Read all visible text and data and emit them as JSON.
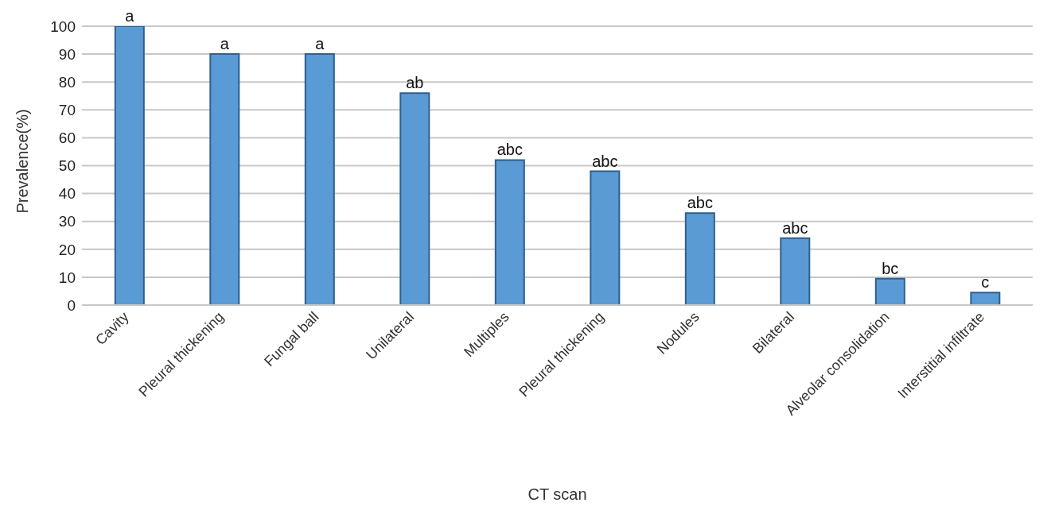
{
  "chart_data": {
    "type": "bar",
    "xlabel": "CT scan",
    "ylabel": "Prevalence(%)",
    "categories": [
      "Cavity",
      "Pleural thickening",
      "Fungal ball",
      "Unilateral",
      "Multiples",
      "Pleural thickening",
      "Nodules",
      "Bilateral",
      "Alveolar consolidation",
      "Interstitial infiltrate"
    ],
    "values": [
      100,
      90,
      90,
      76,
      52,
      48,
      33,
      24,
      9.5,
      4.5
    ],
    "value_labels": [
      "a",
      "a",
      "a",
      "ab",
      "abc",
      "abc",
      "abc",
      "abc",
      "bc",
      "c"
    ],
    "color": "#5b9bd5",
    "ylim": [
      0,
      100
    ],
    "yticks": [
      0,
      10,
      20,
      30,
      40,
      50,
      60,
      70,
      80,
      90,
      100
    ],
    "grid": "y"
  }
}
